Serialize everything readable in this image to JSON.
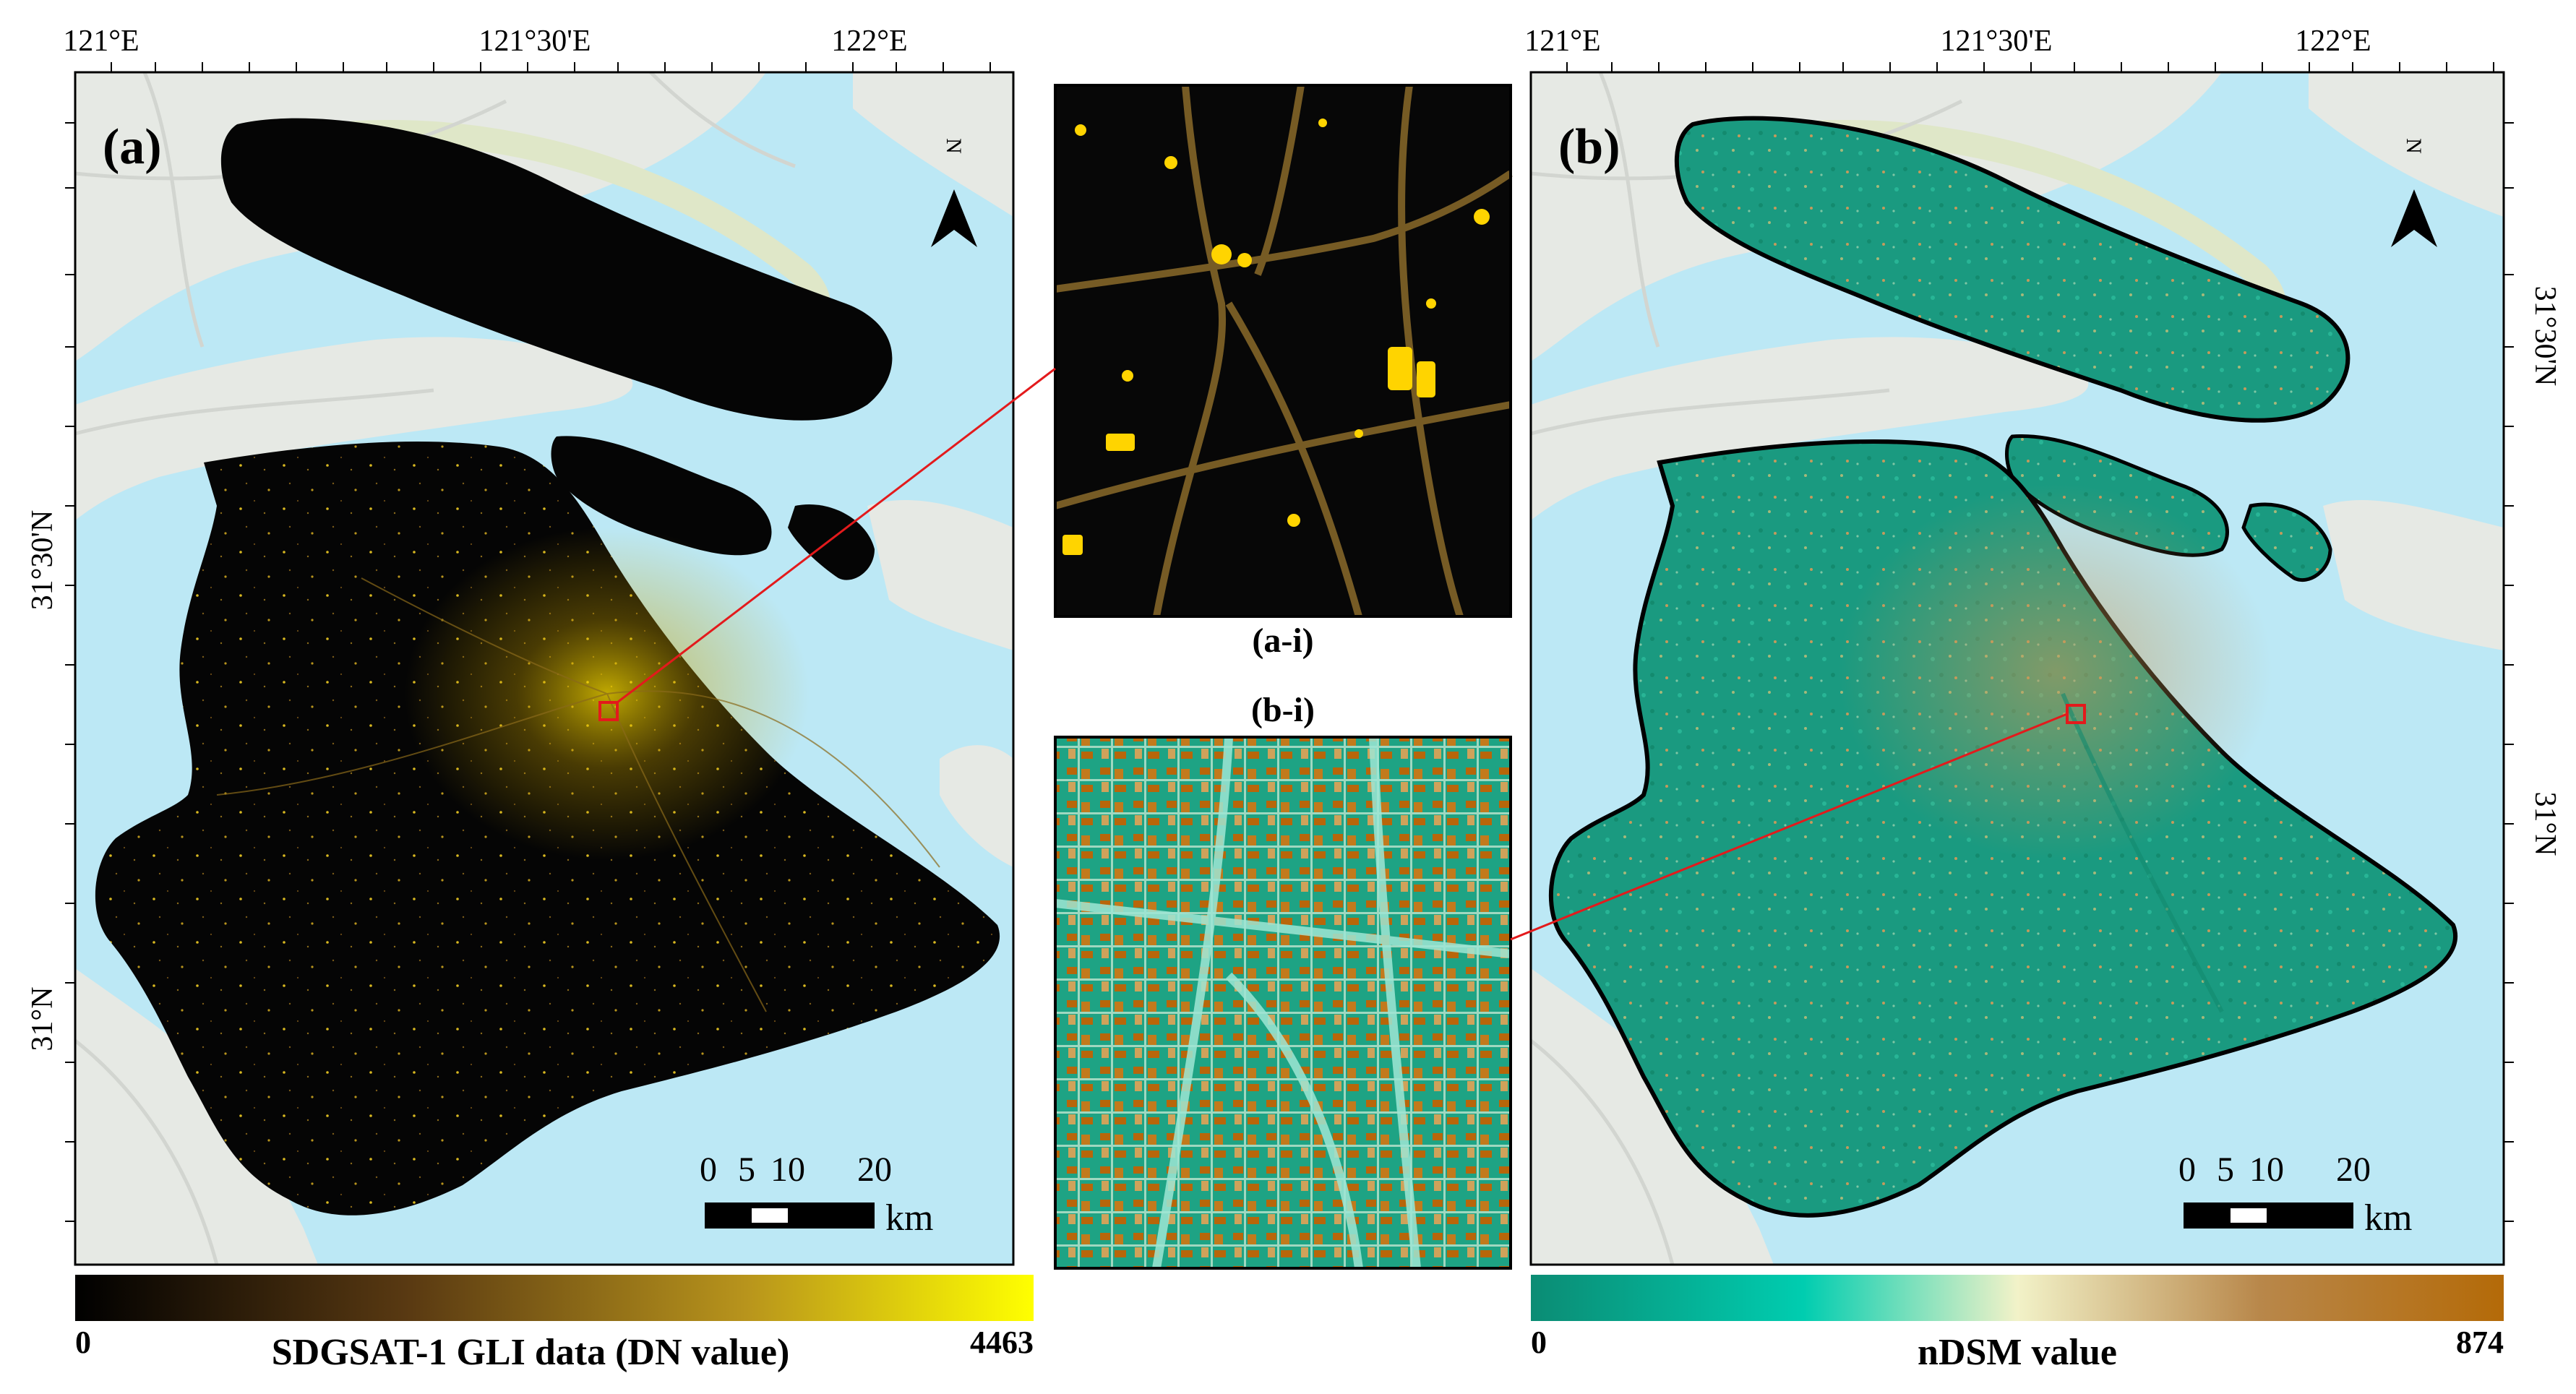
{
  "panel_a": {
    "label": "(a)",
    "lon_ticks": [
      "121°E",
      "121°30'E",
      "122°E"
    ],
    "lat_ticks": [
      "31°30'N",
      "31°N"
    ],
    "colorbar": {
      "min": "0",
      "max": "4463",
      "title": "SDGSAT-1 GLI data (DN value)",
      "colors": [
        "#000000",
        "#5a3a12",
        "#b8941c",
        "#ffff00"
      ]
    }
  },
  "panel_b": {
    "label": "(b)",
    "lon_ticks": [
      "121°E",
      "121°30'E",
      "122°E"
    ],
    "lat_ticks": [
      "31°30'N",
      "31°N"
    ],
    "colorbar": {
      "min": "0",
      "max": "874",
      "title": "nDSM value",
      "colors": [
        "#0b8c74",
        "#00cdb0",
        "#f2f2c8",
        "#b8874a",
        "#b46a08"
      ]
    }
  },
  "inset_a": {
    "label": "(a-i)"
  },
  "inset_b": {
    "label": "(b-i)"
  },
  "scale_bar": {
    "ticks": [
      "0",
      "5",
      "10",
      "20"
    ],
    "unit": "km"
  },
  "north_arrow": {
    "letter": "N"
  },
  "colors": {
    "water": "#bce8f5",
    "land": "#e6e9e4",
    "shore": "#dfe7c8",
    "link_line": "#e31a1c"
  }
}
